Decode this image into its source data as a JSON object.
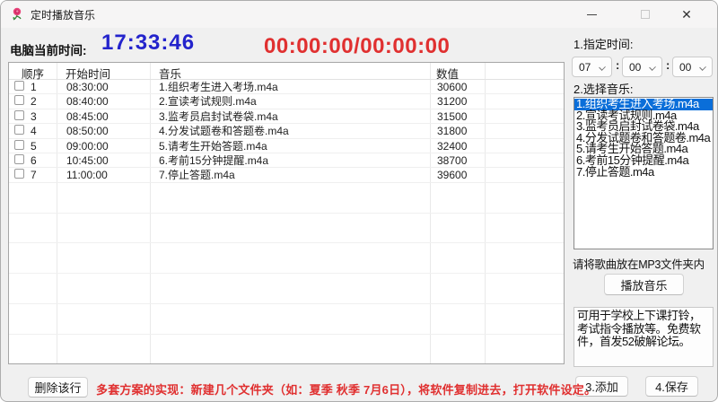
{
  "window": {
    "title": "定时播放音乐",
    "icon": "rose-icon",
    "controls": {
      "minimize": "minimize",
      "maximize": "maximize",
      "close": "✕"
    }
  },
  "clock": {
    "label": "电脑当前时间:",
    "current_time": "17:33:46",
    "playback_time": "00:00:00/00:00:00"
  },
  "table": {
    "headers": [
      "顺序",
      "开始时间",
      "音乐",
      "数值"
    ],
    "rows": [
      {
        "order": "1",
        "start": "08:30:00",
        "music": "1.组织考生进入考场.m4a",
        "value": "30600"
      },
      {
        "order": "2",
        "start": "08:40:00",
        "music": "2.宣读考试规则.m4a",
        "value": "31200"
      },
      {
        "order": "3",
        "start": "08:45:00",
        "music": "3.监考员启封试卷袋.m4a",
        "value": "31500"
      },
      {
        "order": "4",
        "start": "08:50:00",
        "music": "4.分发试题卷和答题卷.m4a",
        "value": "31800"
      },
      {
        "order": "5",
        "start": "09:00:00",
        "music": "5.请考生开始答题.m4a",
        "value": "32400"
      },
      {
        "order": "6",
        "start": "10:45:00",
        "music": "6.考前15分钟提醒.m4a",
        "value": "38700"
      },
      {
        "order": "7",
        "start": "11:00:00",
        "music": "7.停止答题.m4a",
        "value": "39600"
      }
    ],
    "filler_row_count": 6
  },
  "right_panel": {
    "time_section_label": "1.指定时间:",
    "hour": "07",
    "minute": "00",
    "second": "00",
    "colon": ":",
    "music_section_label": "2.选择音乐:",
    "music_list": [
      "1.组织考生进入考场.m4a",
      "2.宣读考试规则.m4a",
      "3.监考员启封试卷袋.m4a",
      "4.分发试题卷和答题卷.m4a",
      "5.请考生开始答题.m4a",
      "6.考前15分钟提醒.m4a",
      "7.停止答题.m4a"
    ],
    "selected_index": 0,
    "mp3_hint": "请将歌曲放在MP3文件夹内",
    "play_button": "播放音乐",
    "info_text": "可用于学校上下课打铃，考试指令播放等。免费软件，首发52破解论坛。",
    "add_button": "3.添加",
    "save_button": "4.保存"
  },
  "bottom": {
    "delete_button": "删除该行",
    "tip_text": "多套方案的实现：新建几个文件夹（如：夏季 秋季 7月6日），将软件复制进去，打开软件设定。"
  },
  "colors": {
    "current_time_blue": "#2323cc",
    "playback_red": "#e03030",
    "selection_blue": "#0a6ed9",
    "tip_red": "#e03030"
  }
}
